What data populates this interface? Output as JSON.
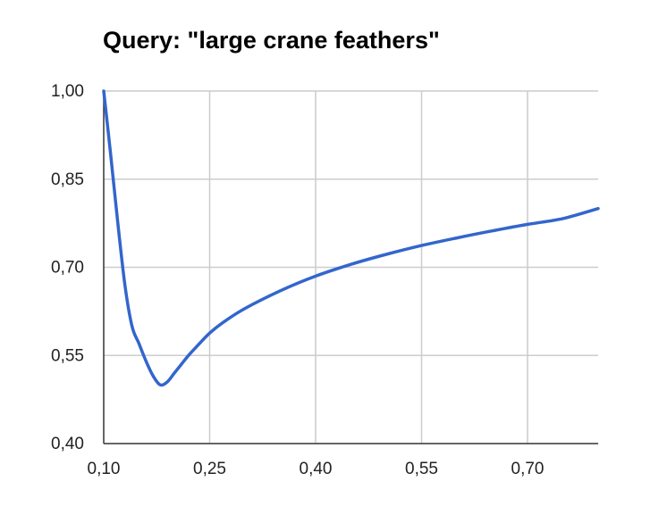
{
  "title": "Query: \"large crane feathers\"",
  "chart_data": {
    "type": "line",
    "title": "Query: \"large crane feathers\"",
    "xlabel": "",
    "ylabel": "",
    "xlim": [
      0.1,
      0.8
    ],
    "ylim": [
      0.4,
      1.0
    ],
    "x_ticks": [
      "0,10",
      "0,25",
      "0,40",
      "0,55",
      "0,70"
    ],
    "y_ticks": [
      "1,00",
      "0,85",
      "0,70",
      "0,55",
      "0,40"
    ],
    "x_tick_values": [
      0.1,
      0.25,
      0.4,
      0.55,
      0.7
    ],
    "y_tick_values": [
      1.0,
      0.85,
      0.7,
      0.55,
      0.4
    ],
    "grid": true,
    "line_color": "#3366cc",
    "series": [
      {
        "x": [
          0.1,
          0.11,
          0.12,
          0.13,
          0.14,
          0.15,
          0.16,
          0.17,
          0.18,
          0.19,
          0.2,
          0.21,
          0.22,
          0.23,
          0.25,
          0.27,
          0.3,
          0.35,
          0.4,
          0.45,
          0.5,
          0.55,
          0.6,
          0.65,
          0.7,
          0.75,
          0.8
        ],
        "y": [
          1.0,
          0.89,
          0.775,
          0.67,
          0.6,
          0.57,
          0.54,
          0.515,
          0.5,
          0.505,
          0.52,
          0.535,
          0.55,
          0.563,
          0.588,
          0.607,
          0.63,
          0.66,
          0.685,
          0.705,
          0.722,
          0.737,
          0.75,
          0.762,
          0.773,
          0.783,
          0.8
        ]
      }
    ]
  }
}
